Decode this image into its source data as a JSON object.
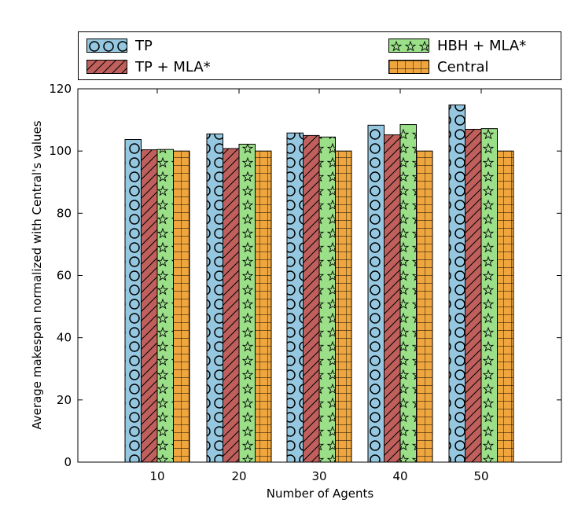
{
  "chart_data": {
    "type": "bar",
    "xlabel": "Number of Agents",
    "ylabel": "Average makespan normalized with Central's values",
    "categories": [
      "10",
      "20",
      "30",
      "40",
      "50"
    ],
    "ylim": [
      0,
      120
    ],
    "yticks": [
      "0",
      "20",
      "40",
      "60",
      "80",
      "100",
      "120"
    ],
    "legend_position": "top",
    "series": [
      {
        "name": "TP",
        "values": [
          103.7,
          105.5,
          105.8,
          108.3,
          114.8
        ],
        "color": "#95c8e0",
        "pattern": "circles"
      },
      {
        "name": "TP + MLA*",
        "values": [
          100.4,
          100.8,
          105.0,
          105.2,
          107.0
        ],
        "color": "#c0605d",
        "pattern": "diagonal"
      },
      {
        "name": "HBH + MLA*",
        "values": [
          100.5,
          102.2,
          104.5,
          108.5,
          107.2
        ],
        "color": "#9be089",
        "pattern": "stars"
      },
      {
        "name": "Central",
        "values": [
          100,
          100,
          100,
          100,
          100
        ],
        "color": "#f0a63e",
        "pattern": "grid"
      }
    ]
  }
}
